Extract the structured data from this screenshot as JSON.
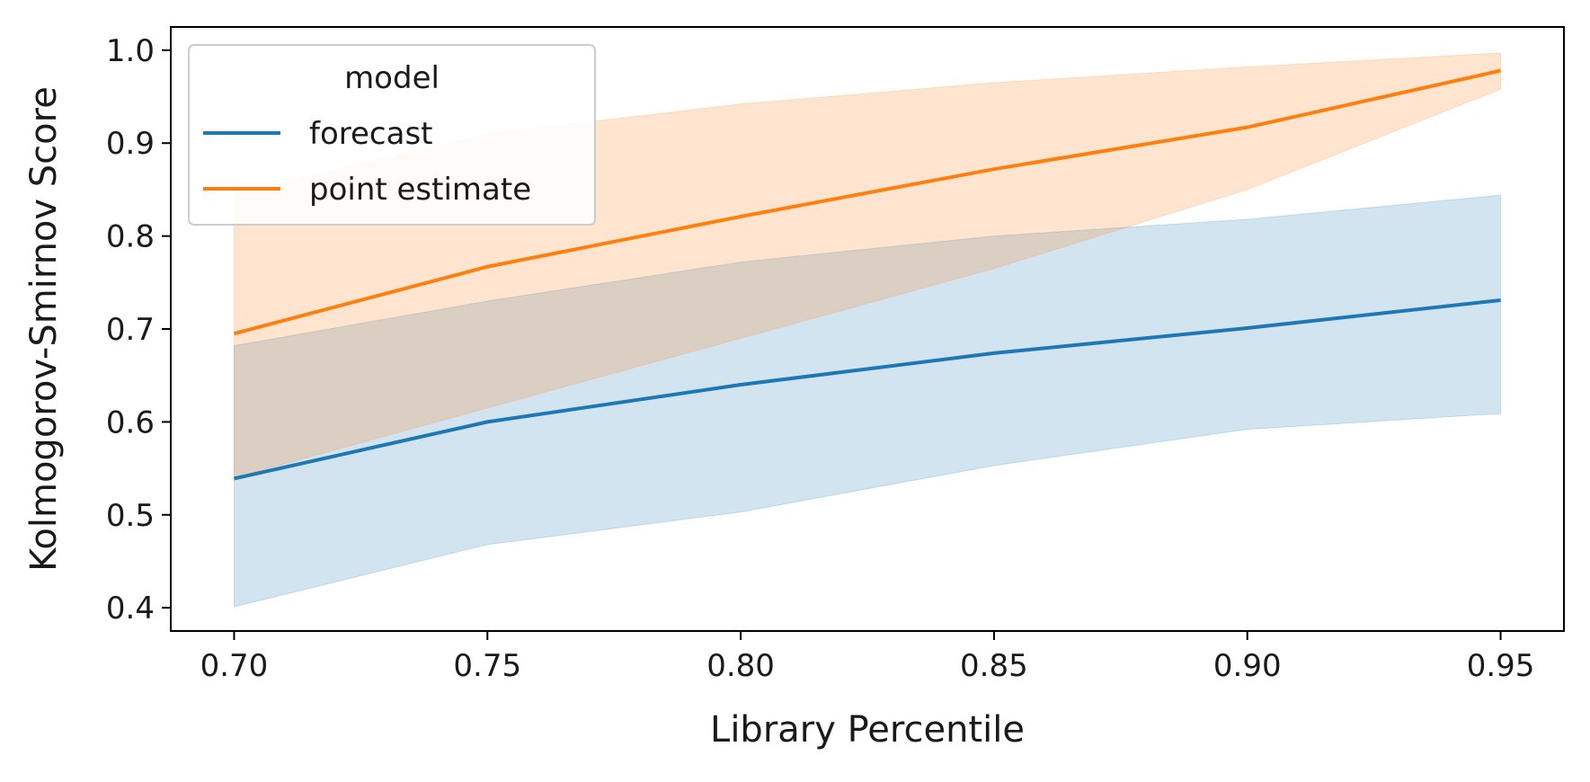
{
  "chart_data": {
    "type": "line",
    "title": "",
    "xlabel": "Library Percentile",
    "ylabel": "Kolmogorov-Smirnov Score",
    "xlim": [
      0.6875,
      0.9625
    ],
    "ylim": [
      0.375,
      1.025
    ],
    "xticks": [
      0.7,
      0.75,
      0.8,
      0.85,
      0.9,
      0.95
    ],
    "xtick_labels": [
      "0.70",
      "0.75",
      "0.80",
      "0.85",
      "0.90",
      "0.95"
    ],
    "yticks": [
      0.4,
      0.5,
      0.6,
      0.7,
      0.8,
      0.9,
      1.0
    ],
    "ytick_labels": [
      "0.4",
      "0.5",
      "0.6",
      "0.7",
      "0.8",
      "0.9",
      "1.0"
    ],
    "grid": false,
    "legend": {
      "title": "model",
      "placement": "top-left"
    },
    "x": [
      0.7,
      0.75,
      0.8,
      0.85,
      0.9,
      0.95
    ],
    "series": [
      {
        "name": "forecast",
        "color": "#1f77b4",
        "values": [
          0.539,
          0.6,
          0.64,
          0.674,
          0.701,
          0.731
        ],
        "lower": [
          0.401,
          0.468,
          0.503,
          0.553,
          0.592,
          0.609
        ],
        "upper": [
          0.682,
          0.73,
          0.772,
          0.8,
          0.818,
          0.844
        ]
      },
      {
        "name": "point estimate",
        "color": "#ff7f0e",
        "values": [
          0.695,
          0.767,
          0.821,
          0.872,
          0.917,
          0.978
        ],
        "lower": [
          0.54,
          0.615,
          0.69,
          0.765,
          0.85,
          0.958
        ],
        "upper": [
          0.845,
          0.91,
          0.942,
          0.965,
          0.982,
          0.997
        ]
      }
    ]
  }
}
